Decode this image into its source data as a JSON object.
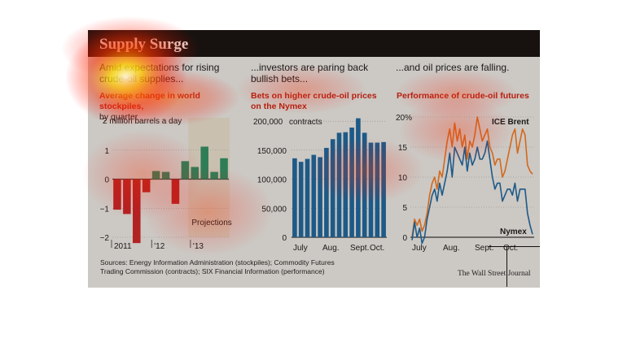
{
  "figure": {
    "title": "Supply Surge",
    "headlines": [
      "Amid expectations for rising crude-oil supplies...",
      "...investors are paring back bullish bets...",
      "...and oil prices are falling."
    ],
    "subtitles": [
      {
        "bold": "Average change in world stockpiles,",
        "light": "by quarter"
      },
      {
        "bold": "Bets on higher crude-oil prices on the Nymex",
        "light": ""
      },
      {
        "bold": "Performance of crude-oil futures",
        "light": ""
      }
    ],
    "sources": "Sources: Energy Information Administration (stockpiles); Commodity Futures Trading Commission (contracts); SIX Financial Information (performance)",
    "credit": "The Wall Street Journal"
  },
  "chart_data": [
    {
      "type": "bar",
      "unit_label": "2 million barrels a day",
      "ylim": [
        -2,
        2
      ],
      "y_ticks": [
        "−2",
        "−1",
        "0",
        "1"
      ],
      "x_tick_labels": [
        "2011",
        "'12",
        "'13"
      ],
      "annotation": "Projections",
      "colors": {
        "negative": "#b22222",
        "positive": "#2e7d57",
        "projection_shade": "#c6bba3"
      },
      "categories": [
        "2011 Q1",
        "2011 Q2",
        "2011 Q3",
        "2011 Q4",
        "2012 Q1",
        "2012 Q2",
        "2012 Q3",
        "2012 Q4",
        "2013 Q1",
        "2013 Q2",
        "2013 Q3",
        "2013 Q4"
      ],
      "values": [
        -1.05,
        -1.2,
        -2.2,
        -0.45,
        0.28,
        0.25,
        -0.85,
        0.62,
        0.42,
        1.12,
        0.25,
        0.72
      ],
      "projection_from_index": 8
    },
    {
      "type": "bar",
      "unit_label": "contracts",
      "ylim": [
        0,
        210000
      ],
      "y_ticks": [
        "0",
        "50,000",
        "100,000",
        "150,000",
        "200,000"
      ],
      "x_tick_labels": [
        "July",
        "Aug.",
        "Sept.",
        "Oct."
      ],
      "colors": {
        "bar": "#1d5a88"
      },
      "values": [
        136000,
        130000,
        135000,
        142000,
        138000,
        154000,
        169000,
        180000,
        181000,
        189000,
        205000,
        180000,
        163000,
        163000,
        164000
      ]
    },
    {
      "type": "line",
      "ylim": [
        0,
        20
      ],
      "y_ticks": [
        "0",
        "5",
        "10",
        "15",
        "20%"
      ],
      "x_tick_labels": [
        "July",
        "Aug.",
        "Sept.",
        "Oct."
      ],
      "series": [
        {
          "name": "ICE Brent",
          "color": "#d2691e",
          "values": [
            0,
            3,
            2,
            3,
            1,
            2,
            4,
            7,
            9,
            10,
            8,
            11,
            10,
            13,
            16,
            18,
            15,
            19,
            16,
            18,
            15,
            17,
            13,
            16,
            15,
            17,
            20,
            18,
            16,
            17,
            18,
            15,
            14,
            12,
            13,
            13,
            10,
            11,
            13,
            15,
            17,
            18,
            14,
            16,
            18,
            17,
            12,
            11,
            10.5
          ]
        },
        {
          "name": "Nymex",
          "color": "#1d5a88",
          "values": [
            -0.5,
            2.5,
            0,
            1.5,
            -1,
            0,
            3,
            5,
            7,
            8,
            6,
            9,
            7,
            9,
            11,
            14,
            10,
            15,
            14,
            13,
            12,
            15,
            11,
            14,
            12,
            13,
            15,
            13,
            13,
            14,
            16,
            13,
            10,
            8,
            9,
            9,
            6,
            7,
            8,
            8,
            7,
            9,
            6,
            8,
            8,
            8,
            4,
            2,
            0.5
          ]
        }
      ]
    }
  ]
}
